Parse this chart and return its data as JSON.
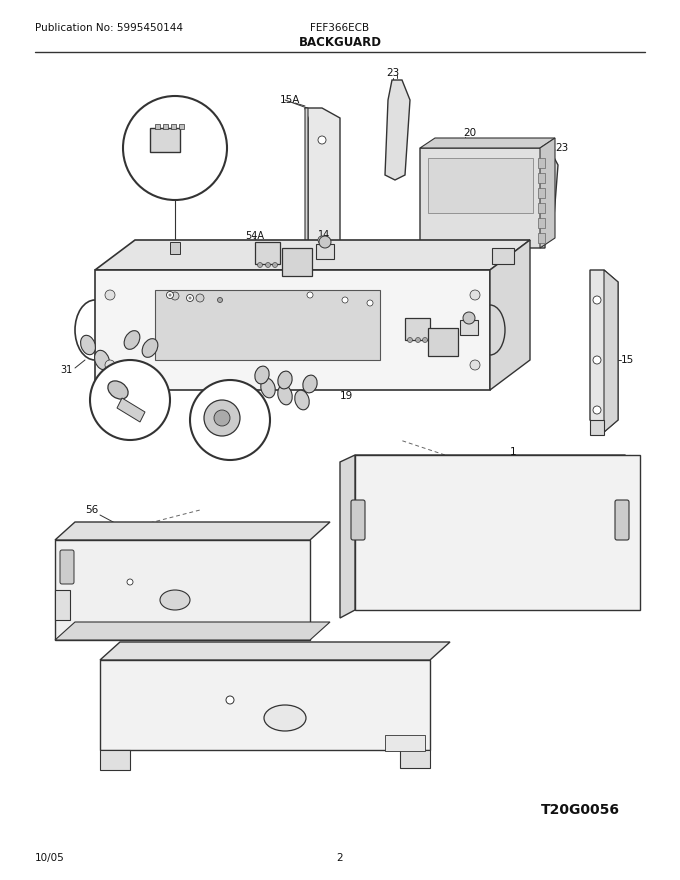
{
  "pub_no": "Publication No: 5995450144",
  "model": "FEF366ECB",
  "section": "BACKGUARD",
  "date": "10/05",
  "page": "2",
  "diagram_code": "T20G0056",
  "bg_color": "#ffffff",
  "lc": "#333333"
}
